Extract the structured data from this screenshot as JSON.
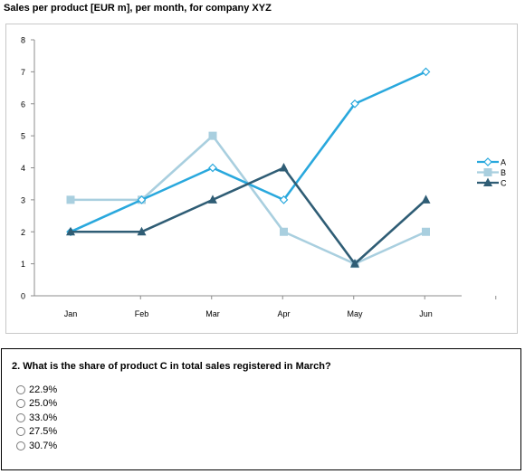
{
  "chart_data": {
    "type": "line",
    "title": "Sales per product [EUR m], per month, for company XYZ",
    "categories": [
      "Jan",
      "Feb",
      "Mar",
      "Apr",
      "May",
      "Jun"
    ],
    "series": [
      {
        "name": "A",
        "values": [
          2,
          3,
          4,
          3,
          6,
          7
        ],
        "color": "#29a8dd",
        "marker": "diamond-open"
      },
      {
        "name": "B",
        "values": [
          3,
          3,
          5,
          2,
          1,
          2
        ],
        "color": "#a9cfdf",
        "marker": "square"
      },
      {
        "name": "C",
        "values": [
          2,
          2,
          3,
          4,
          1,
          3
        ],
        "color": "#2f5d75",
        "marker": "triangle"
      }
    ],
    "ylim": [
      0,
      8
    ],
    "yticks": [
      "0",
      "1",
      "2",
      "3",
      "4",
      "5",
      "6",
      "7",
      "8"
    ],
    "xlabel": "",
    "ylabel": "",
    "grid": false,
    "legend_position": "right"
  },
  "question": {
    "text": "2. What is the share of product C in total sales registered in March?",
    "options": [
      "22.9%",
      "25.0%",
      "33.0%",
      "27.5%",
      "30.7%"
    ]
  }
}
